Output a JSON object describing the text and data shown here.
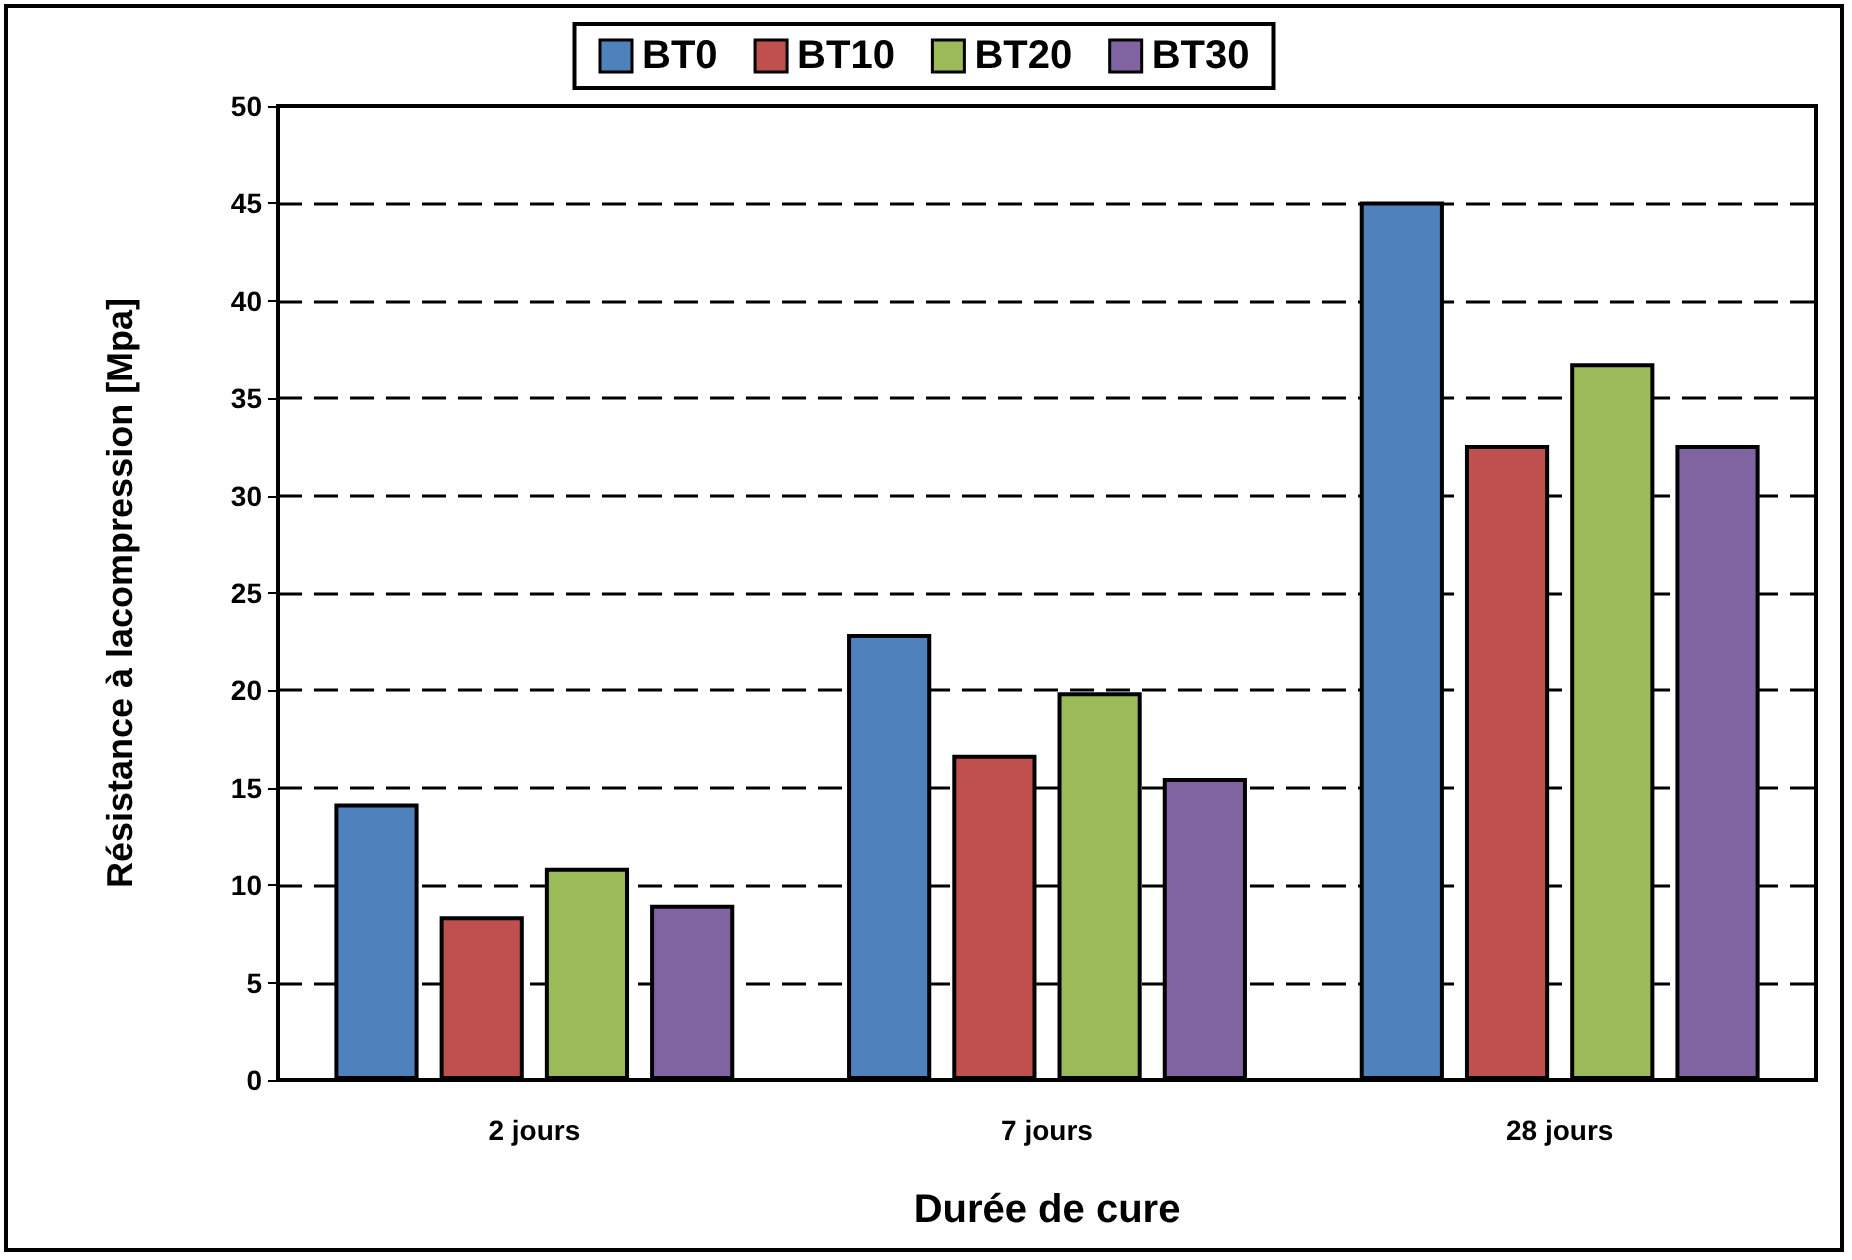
{
  "chart_data": {
    "type": "bar",
    "xlabel": "Durée de cure",
    "ylabel": "Résistance à lacompression [Mpa]",
    "categories": [
      "2 jours",
      "7 jours",
      "28 jours"
    ],
    "series": [
      {
        "name": "BT0",
        "color": "#4f81bd",
        "values": [
          14.2,
          22.9,
          45.1
        ]
      },
      {
        "name": "BT10",
        "color": "#c0504d",
        "values": [
          8.4,
          16.7,
          32.6
        ]
      },
      {
        "name": "BT20",
        "color": "#9bbb59",
        "values": [
          10.9,
          19.9,
          36.8
        ]
      },
      {
        "name": "BT30",
        "color": "#8064a2",
        "values": [
          9.0,
          15.5,
          32.6
        ]
      }
    ],
    "ylim": [
      0,
      50
    ],
    "yticks": [
      0,
      5,
      10,
      15,
      20,
      25,
      30,
      35,
      40,
      45,
      50
    ],
    "grid": "y",
    "legend": "top"
  }
}
